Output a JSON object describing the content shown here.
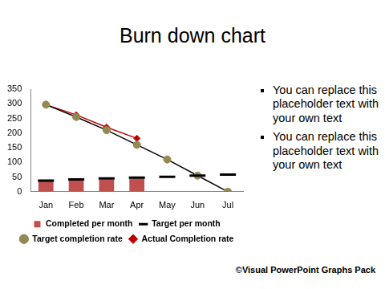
{
  "chart_data": {
    "type": "bar",
    "title": "Burn down chart",
    "categories": [
      "Jan",
      "Feb",
      "Mar",
      "Apr",
      "May",
      "Jun",
      "Jul"
    ],
    "series": [
      {
        "name": "Completed per month",
        "type": "bar",
        "color": "#c0504d",
        "values": [
          35,
          40,
          42,
          45,
          null,
          null,
          null
        ]
      },
      {
        "name": "Target per month",
        "type": "line",
        "color": "#000000",
        "marker": "dash",
        "line_style": "none",
        "values": [
          38,
          42,
          45,
          48,
          51,
          55,
          58
        ]
      },
      {
        "name": "Target completion rate",
        "type": "line",
        "color": "#938953",
        "marker": "circle",
        "line_style": "solid",
        "values": [
          297,
          255,
          210,
          160,
          110,
          55,
          0
        ]
      },
      {
        "name": "Actual Completion rate",
        "type": "line",
        "color": "#c00000",
        "marker": "diamond",
        "line_style": "solid",
        "values": [
          297,
          262,
          220,
          182,
          null,
          null,
          null
        ]
      }
    ],
    "ylim": [
      0,
      350
    ],
    "yticks": [
      0,
      50,
      100,
      150,
      200,
      250,
      300,
      350
    ],
    "grid": false,
    "legend": "bottom"
  },
  "bullets": [
    "You can replace this placeholder text with your own text",
    "You can replace this placeholder text with your own text"
  ],
  "footer": "©Visual PowerPoint Graphs Pack"
}
